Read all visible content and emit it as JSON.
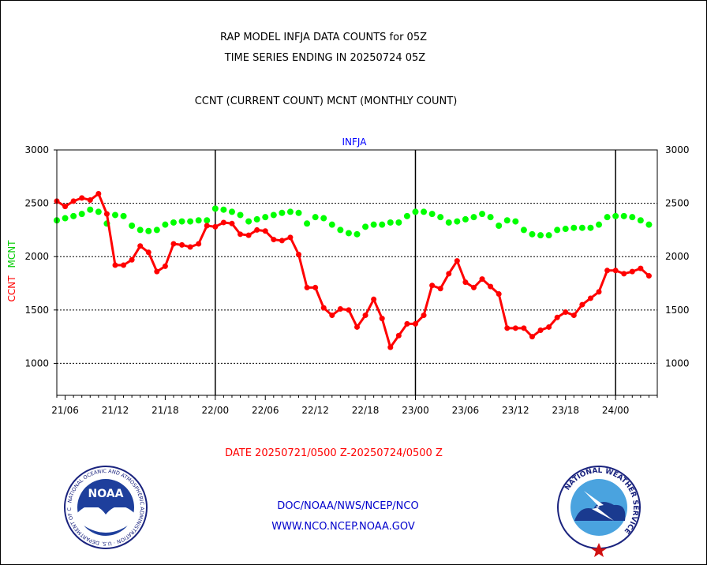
{
  "header": {
    "title_line1": "RAP MODEL INFJA DATA COUNTS for 05Z",
    "title_line2": "TIME SERIES ENDING IN 20250724 05Z",
    "subtitle": "CCNT (CURRENT COUNT) MCNT (MONTHLY COUNT)"
  },
  "footer": {
    "date_range": "DATE 20250721/0500 Z-20250724/0500 Z",
    "org_path": "DOC/NOAA/NWS/NCEP/NCO",
    "website": "WWW.NCO.NCEP.NOAA.GOV",
    "noaa_logo_text": "NOAA",
    "noaa_logo_ring_text": "NATIONAL OCEANIC AND ATMOSPHERIC ADMINISTRATION · U.S. DEPARTMENT OF COMMERCE",
    "nws_logo_ring_text": "NATIONAL WEATHER SERVICE"
  },
  "colors": {
    "ccnt": "#ff0000",
    "mcnt": "#00ff00",
    "station_label": "#0000ff",
    "footer_links": "#0000cc"
  },
  "chart_data": {
    "type": "line",
    "title": "INFJA",
    "ylabel_ccnt": "CCNT",
    "ylabel_mcnt": "MCNT",
    "ylim": [
      700,
      3000
    ],
    "yticks": [
      1000,
      1500,
      2000,
      2500,
      3000
    ],
    "xlim": [
      -1,
      71
    ],
    "xticks": [
      {
        "x": 0,
        "label": "21/06"
      },
      {
        "x": 6,
        "label": "21/12"
      },
      {
        "x": 12,
        "label": "21/18"
      },
      {
        "x": 18,
        "label": "22/00"
      },
      {
        "x": 24,
        "label": "22/06"
      },
      {
        "x": 30,
        "label": "22/12"
      },
      {
        "x": 36,
        "label": "22/18"
      },
      {
        "x": 42,
        "label": "23/00"
      },
      {
        "x": 48,
        "label": "23/06"
      },
      {
        "x": 54,
        "label": "23/12"
      },
      {
        "x": 60,
        "label": "23/18"
      },
      {
        "x": 66,
        "label": "24/00"
      }
    ],
    "day_boundaries": [
      18,
      42,
      66
    ],
    "grid_y": [
      1000,
      1500,
      2000,
      2500
    ],
    "series": [
      {
        "name": "CCNT",
        "color": "#ff0000",
        "x_start": -1,
        "values": [
          2520,
          2470,
          2520,
          2550,
          2530,
          2590,
          2400,
          1920,
          1920,
          1970,
          2100,
          2040,
          1860,
          1910,
          2120,
          2110,
          2090,
          2120,
          2290,
          2280,
          2320,
          2310,
          2210,
          2200,
          2250,
          2240,
          2160,
          2150,
          2180,
          2020,
          1710,
          1710,
          1520,
          1450,
          1510,
          1500,
          1340,
          1450,
          1600,
          1420,
          1150,
          1260,
          1370,
          1370,
          1450,
          1730,
          1700,
          1840,
          1960,
          1760,
          1710,
          1790,
          1720,
          1650,
          1330,
          1330,
          1330,
          1250,
          1310,
          1340,
          1430,
          1480,
          1450,
          1550,
          1610,
          1670,
          1870,
          1870,
          1840,
          1860,
          1890,
          1820
        ]
      },
      {
        "name": "MCNT",
        "color": "#00ff00",
        "x_start": -1,
        "values": [
          2340,
          2360,
          2380,
          2400,
          2440,
          2420,
          2310,
          2390,
          2380,
          2290,
          2250,
          2240,
          2250,
          2300,
          2320,
          2330,
          2330,
          2340,
          2340,
          2450,
          2440,
          2420,
          2390,
          2330,
          2350,
          2370,
          2390,
          2410,
          2420,
          2410,
          2310,
          2370,
          2360,
          2300,
          2250,
          2220,
          2210,
          2280,
          2300,
          2300,
          2320,
          2320,
          2380,
          2420,
          2420,
          2400,
          2370,
          2320,
          2330,
          2350,
          2370,
          2400,
          2370,
          2290,
          2340,
          2330,
          2250,
          2210,
          2200,
          2200,
          2250,
          2260,
          2270,
          2270,
          2270,
          2300,
          2370,
          2380,
          2380,
          2370,
          2340,
          2300
        ]
      }
    ]
  }
}
